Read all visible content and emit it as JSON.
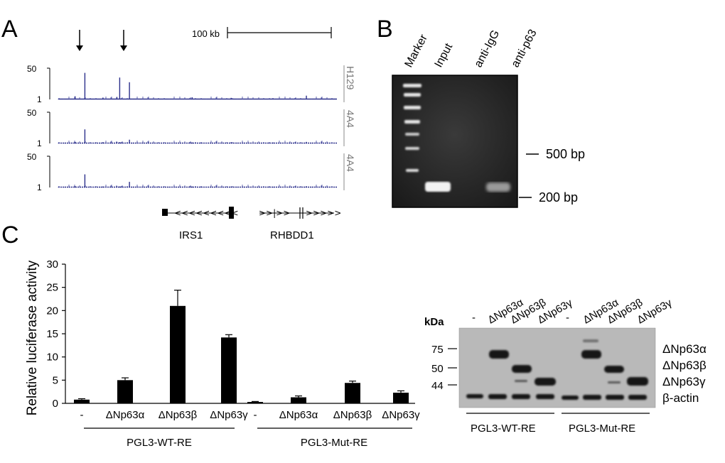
{
  "panels": {
    "a": "A",
    "b": "B",
    "c": "C"
  },
  "panel_a": {
    "scale_label": "100 kb",
    "tracks": [
      {
        "name": "H129",
        "y_top": "50",
        "y_bottom": "1",
        "peaks": [
          0.1,
          0.85,
          0.06,
          0.08,
          0.7,
          0.55,
          0.07,
          0.05,
          0.04,
          0.12
        ]
      },
      {
        "name": "4A4",
        "y_top": "50",
        "y_bottom": "1",
        "peaks": [
          0.05,
          0.45,
          0.04,
          0.05,
          0.04,
          0.12,
          0.03,
          0.04,
          0.03,
          0.05
        ]
      },
      {
        "name": "4A4",
        "y_top": "50",
        "y_bottom": "1",
        "peaks": [
          0.04,
          0.42,
          0.03,
          0.04,
          0.03,
          0.18,
          0.03,
          0.03,
          0.02,
          0.04
        ]
      }
    ],
    "genes": [
      "IRS1",
      "RHBDD1"
    ]
  },
  "panel_b": {
    "lanes": [
      "Marker",
      "Input",
      "anti-IgG",
      "anti-p63"
    ],
    "markers": [
      "500 bp",
      "200 bp"
    ]
  },
  "chart_data": {
    "type": "bar",
    "ylabel": "Relative luciferase activity",
    "ylim": [
      0,
      30
    ],
    "yticks": [
      "0",
      "5",
      "10",
      "15",
      "20",
      "25",
      "30"
    ],
    "categories": [
      "-",
      "ΔNp63α",
      "ΔNp63β",
      "ΔNp63γ",
      "-",
      "ΔNp63α",
      "ΔNp63β",
      "ΔNp63γ"
    ],
    "values": [
      0.8,
      5.0,
      21.0,
      14.2,
      0.3,
      1.3,
      4.4,
      2.3
    ],
    "errors": [
      0.2,
      0.5,
      3.4,
      0.6,
      0.1,
      0.3,
      0.4,
      0.4
    ],
    "groups": [
      "PGL3-WT-RE",
      "PGL3-Mut-RE"
    ]
  },
  "western": {
    "kda_label": "kDa",
    "lanes": [
      "-",
      "ΔNp63α",
      "ΔNp63β",
      "ΔNp63γ",
      "-",
      "ΔNp63α",
      "ΔNp63β",
      "ΔNp63γ"
    ],
    "kda_marks": [
      "75",
      "50",
      "44"
    ],
    "bands": [
      "ΔNp63α",
      "ΔNp63β",
      "ΔNp63γ",
      "β-actin"
    ],
    "groups": [
      "PGL3-WT-RE",
      "PGL3-Mut-RE"
    ]
  }
}
